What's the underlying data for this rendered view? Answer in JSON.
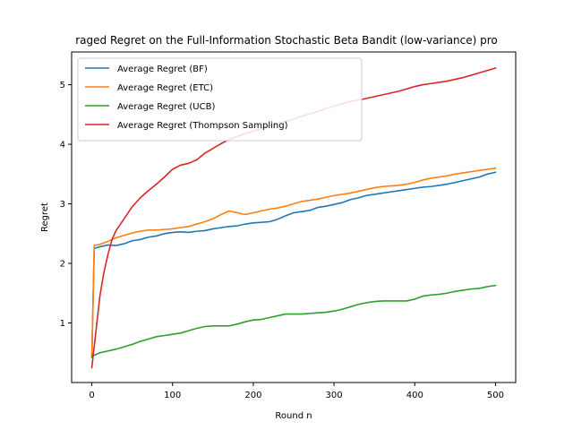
{
  "chart_data": {
    "type": "line",
    "title": "Averaged Regret on the Full-Information Stochastic Beta Bandit (low-variance) problem",
    "title_display": "raged Regret on the Full-Information Stochastic Beta Bandit (low-variance) pro",
    "xlabel": "Round n",
    "ylabel": "Regret",
    "xlim": [
      -25,
      525
    ],
    "ylim": [
      0.0,
      5.55
    ],
    "x_ticks": [
      0,
      100,
      200,
      300,
      400,
      500
    ],
    "y_ticks": [
      1,
      2,
      3,
      4,
      5
    ],
    "grid": false,
    "legend_position": "upper-left",
    "series": [
      {
        "name": "Average Regret (BF)",
        "color": "#1f77b4",
        "x": [
          0,
          3,
          10,
          20,
          30,
          40,
          50,
          60,
          70,
          80,
          90,
          100,
          110,
          120,
          130,
          140,
          150,
          160,
          170,
          180,
          190,
          200,
          210,
          220,
          230,
          240,
          250,
          260,
          270,
          280,
          290,
          300,
          310,
          320,
          330,
          340,
          350,
          360,
          370,
          380,
          390,
          400,
          410,
          420,
          430,
          440,
          450,
          460,
          470,
          480,
          490,
          500
        ],
        "y": [
          0.42,
          2.25,
          2.28,
          2.31,
          2.3,
          2.33,
          2.38,
          2.4,
          2.44,
          2.46,
          2.5,
          2.52,
          2.53,
          2.52,
          2.54,
          2.55,
          2.58,
          2.6,
          2.62,
          2.63,
          2.66,
          2.68,
          2.69,
          2.7,
          2.74,
          2.8,
          2.85,
          2.87,
          2.89,
          2.94,
          2.96,
          2.99,
          3.02,
          3.07,
          3.1,
          3.14,
          3.16,
          3.18,
          3.2,
          3.22,
          3.24,
          3.26,
          3.28,
          3.29,
          3.31,
          3.33,
          3.36,
          3.39,
          3.42,
          3.45,
          3.5,
          3.53
        ]
      },
      {
        "name": "Average Regret (ETC)",
        "color": "#ff7f0e",
        "x": [
          0,
          3,
          10,
          20,
          30,
          40,
          50,
          60,
          70,
          80,
          90,
          100,
          110,
          120,
          130,
          140,
          150,
          160,
          170,
          180,
          190,
          200,
          210,
          220,
          230,
          240,
          250,
          260,
          270,
          280,
          290,
          300,
          310,
          320,
          330,
          340,
          350,
          360,
          370,
          380,
          390,
          400,
          410,
          420,
          430,
          440,
          450,
          460,
          470,
          480,
          490,
          500
        ],
        "y": [
          0.42,
          2.3,
          2.32,
          2.37,
          2.43,
          2.47,
          2.51,
          2.54,
          2.56,
          2.56,
          2.57,
          2.58,
          2.6,
          2.62,
          2.66,
          2.7,
          2.75,
          2.82,
          2.88,
          2.85,
          2.82,
          2.85,
          2.88,
          2.91,
          2.93,
          2.96,
          3.0,
          3.04,
          3.06,
          3.08,
          3.11,
          3.14,
          3.16,
          3.18,
          3.21,
          3.24,
          3.27,
          3.29,
          3.3,
          3.31,
          3.33,
          3.36,
          3.4,
          3.43,
          3.45,
          3.47,
          3.5,
          3.52,
          3.54,
          3.56,
          3.58,
          3.6
        ]
      },
      {
        "name": "Average Regret (UCB)",
        "color": "#2ca02c",
        "x": [
          0,
          5,
          10,
          20,
          30,
          40,
          50,
          60,
          70,
          80,
          90,
          100,
          110,
          120,
          130,
          140,
          150,
          160,
          170,
          180,
          190,
          200,
          210,
          220,
          230,
          240,
          250,
          260,
          270,
          280,
          290,
          300,
          310,
          320,
          330,
          340,
          350,
          360,
          370,
          380,
          390,
          400,
          410,
          420,
          430,
          440,
          450,
          460,
          470,
          480,
          490,
          500
        ],
        "y": [
          0.44,
          0.47,
          0.5,
          0.53,
          0.56,
          0.6,
          0.64,
          0.69,
          0.73,
          0.77,
          0.79,
          0.81,
          0.83,
          0.87,
          0.91,
          0.94,
          0.95,
          0.95,
          0.95,
          0.98,
          1.02,
          1.05,
          1.06,
          1.09,
          1.12,
          1.15,
          1.15,
          1.15,
          1.16,
          1.17,
          1.18,
          1.2,
          1.23,
          1.27,
          1.31,
          1.34,
          1.36,
          1.37,
          1.37,
          1.37,
          1.37,
          1.4,
          1.45,
          1.47,
          1.48,
          1.5,
          1.53,
          1.55,
          1.57,
          1.58,
          1.61,
          1.63
        ]
      },
      {
        "name": "Average Regret (Thompson Sampling)",
        "color": "#d62728",
        "x": [
          0,
          5,
          10,
          15,
          20,
          25,
          30,
          40,
          50,
          60,
          70,
          80,
          90,
          100,
          110,
          120,
          130,
          140,
          150,
          160,
          170,
          180,
          190,
          200,
          210,
          220,
          230,
          240,
          250,
          260,
          270,
          280,
          290,
          300,
          310,
          320,
          330,
          340,
          350,
          360,
          370,
          380,
          390,
          400,
          410,
          420,
          430,
          440,
          450,
          460,
          470,
          480,
          490,
          500
        ],
        "y": [
          0.25,
          0.85,
          1.45,
          1.85,
          2.15,
          2.4,
          2.55,
          2.75,
          2.95,
          3.1,
          3.22,
          3.33,
          3.45,
          3.58,
          3.65,
          3.68,
          3.74,
          3.85,
          3.93,
          4.01,
          4.08,
          4.13,
          4.18,
          4.22,
          4.27,
          4.31,
          4.35,
          4.38,
          4.42,
          4.47,
          4.51,
          4.55,
          4.6,
          4.64,
          4.68,
          4.72,
          4.74,
          4.77,
          4.8,
          4.83,
          4.86,
          4.89,
          4.93,
          4.97,
          5.0,
          5.02,
          5.04,
          5.06,
          5.09,
          5.12,
          5.16,
          5.2,
          5.24,
          5.28
        ]
      }
    ]
  }
}
